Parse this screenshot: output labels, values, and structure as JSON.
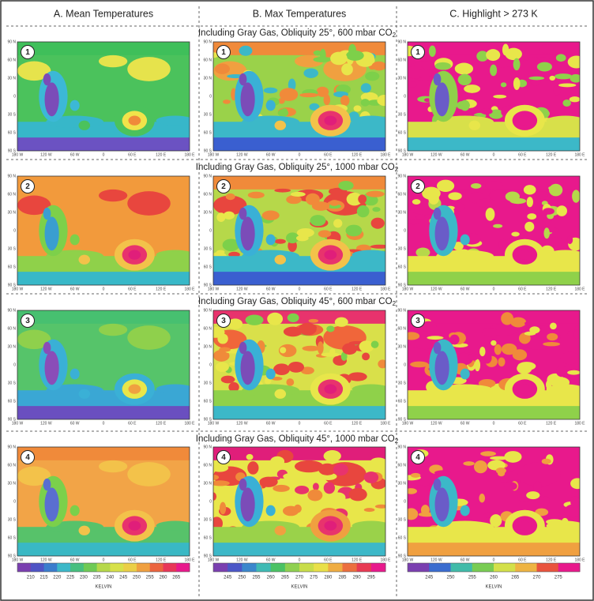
{
  "columns": [
    {
      "title": "A. Mean Temperatures",
      "colorbar": {
        "ticks": [
          "210",
          "215",
          "220",
          "225",
          "230",
          "235",
          "240",
          "245",
          "250",
          "255",
          "260",
          "265"
        ],
        "label": "KELVIN"
      }
    },
    {
      "title": "B. Max Temperatures",
      "colorbar": {
        "ticks": [
          "245",
          "250",
          "255",
          "260",
          "265",
          "270",
          "275",
          "280",
          "285",
          "290",
          "295"
        ],
        "label": "KELVIN"
      }
    },
    {
      "title": "C. Highlight > 273 K",
      "colorbar": {
        "ticks": [
          "245",
          "250",
          "255",
          "260",
          "265",
          "270",
          "275"
        ],
        "label": "KELVIN"
      }
    }
  ],
  "rows": [
    {
      "title": "Including Gray Gas, Obliquity 25°, 600 mbar CO",
      "subscript": "2",
      "number": "1"
    },
    {
      "title": "Including Gray Gas, Obliquity 25°, 1000 mbar CO",
      "subscript": "2",
      "number": "2"
    },
    {
      "title": "Including Gray Gas, Obliquity 45°, 600 mbar CO",
      "subscript": "2",
      "number": "3"
    },
    {
      "title": "Including Gray Gas, Obliquity 45°, 1000 mbar CO",
      "subscript": "2",
      "number": "4"
    }
  ],
  "lat_labels": [
    "90 N",
    "60 N",
    "30 N",
    "0",
    "30 S",
    "60 S",
    "90 S"
  ],
  "lon_labels": [
    "180 W",
    "120 W",
    "60 W",
    "0",
    "60 E",
    "120 E",
    "180 E"
  ]
}
